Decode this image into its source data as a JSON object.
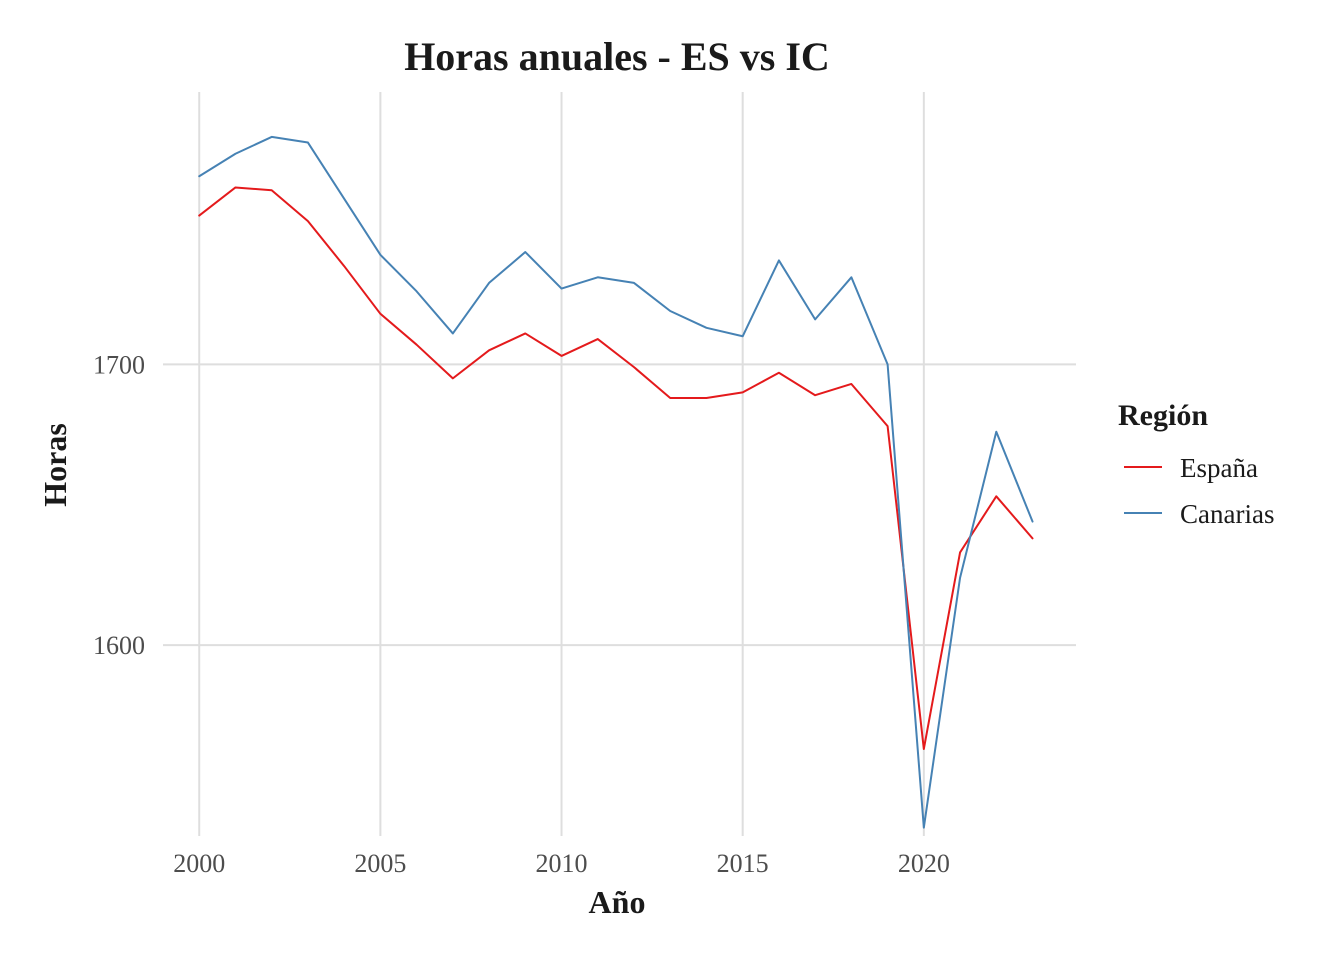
{
  "chart_data": {
    "type": "line",
    "title": "Horas anuales - ES vs IC",
    "xlabel": "Año",
    "ylabel": "Horas",
    "x": [
      2000,
      2001,
      2002,
      2003,
      2004,
      2005,
      2006,
      2007,
      2008,
      2009,
      2010,
      2011,
      2012,
      2013,
      2014,
      2015,
      2016,
      2017,
      2018,
      2019,
      2020,
      2021,
      2022,
      2023
    ],
    "xticks": [
      2000,
      2005,
      2010,
      2015,
      2020
    ],
    "xtick_labels": [
      "2000",
      "2005",
      "2010",
      "2015",
      "2020"
    ],
    "yticks": [
      1600,
      1700
    ],
    "ytick_labels": [
      "1600",
      "1700"
    ],
    "xlim": [
      1999,
      2024.2
    ],
    "ylim": [
      1532,
      1797
    ],
    "grid": true,
    "legend": {
      "title": "Región",
      "position": "right"
    },
    "series": [
      {
        "name": "España",
        "color": "#e41a1c",
        "values": [
          1753,
          1763,
          1762,
          1751,
          1735,
          1718,
          1707,
          1695,
          1705,
          1711,
          1703,
          1709,
          1699,
          1688,
          1688,
          1690,
          1697,
          1689,
          1693,
          1678,
          1563,
          1633,
          1653,
          1638
        ]
      },
      {
        "name": "Canarias",
        "color": "#4682b4",
        "values": [
          1767,
          1775,
          1781,
          1779,
          1759,
          1739,
          1726,
          1711,
          1729,
          1740,
          1727,
          1731,
          1729,
          1719,
          1713,
          1710,
          1737,
          1716,
          1731,
          1700,
          1535,
          1624,
          1676,
          1644
        ]
      }
    ]
  }
}
